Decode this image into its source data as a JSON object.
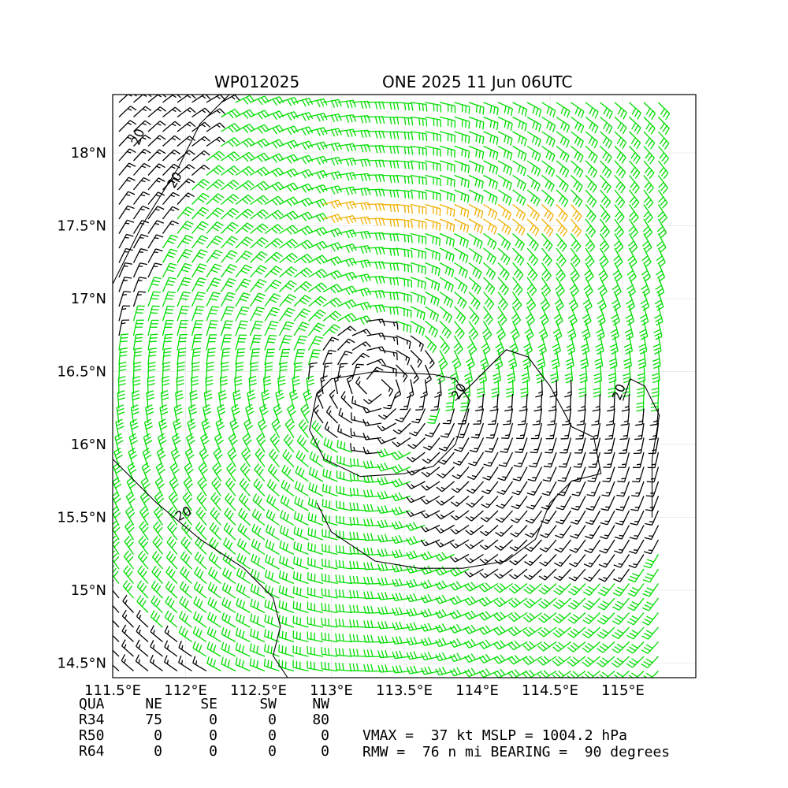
{
  "header": {
    "storm_id": "WP012025",
    "storm_label": "ONE 2025 11 Jun 06UTC"
  },
  "chart_data": {
    "type": "wind-barb-map",
    "x_ticks": [
      "111.5°E",
      "112°E",
      "112.5°E",
      "113°E",
      "113.5°E",
      "114°E",
      "114.5°E",
      "115°E"
    ],
    "x_tick_values": [
      111.5,
      112.0,
      112.5,
      113.0,
      113.5,
      114.0,
      114.5,
      115.0
    ],
    "y_ticks": [
      "14.5°N",
      "15°N",
      "15.5°N",
      "16°N",
      "16.5°N",
      "17°N",
      "17.5°N",
      "18°N"
    ],
    "y_tick_values": [
      14.5,
      15.0,
      15.5,
      16.0,
      16.5,
      17.0,
      17.5,
      18.0
    ],
    "xlim": [
      111.5,
      115.5
    ],
    "ylim": [
      14.4,
      18.4
    ],
    "grid": true,
    "center": {
      "lon": 113.3,
      "lat": 16.4
    },
    "contour_label": "20",
    "barb_colors": {
      "below_20": "#000000",
      "20_to_34": "#00dd00",
      "above_34": "#f0b000"
    },
    "contour_color": "#000000"
  },
  "radii_table": {
    "header": [
      "QUA",
      "NE",
      "SE",
      "SW",
      "NW"
    ],
    "rows": [
      {
        "label": "R34",
        "values": [
          "75",
          "0",
          "0",
          "80"
        ]
      },
      {
        "label": "R50",
        "values": [
          "0",
          "0",
          "0",
          "0"
        ]
      },
      {
        "label": "R64",
        "values": [
          "0",
          "0",
          "0",
          "0"
        ]
      }
    ]
  },
  "info": {
    "line1": "VMAX =  37 kt MSLP = 1004.2 hPa",
    "line2": "RMW =  76 n mi BEARING =  90 degrees"
  }
}
